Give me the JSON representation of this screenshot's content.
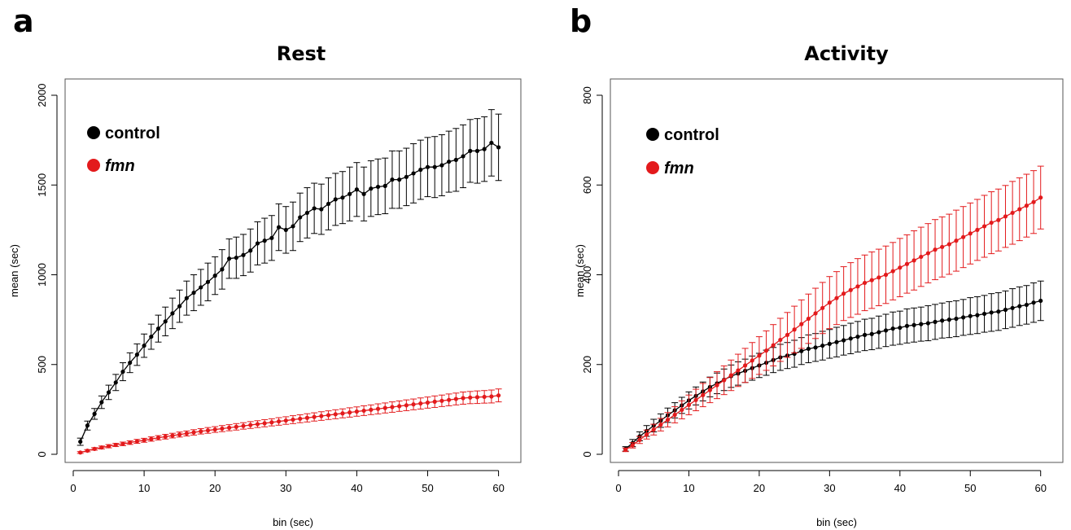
{
  "panels": {
    "a": {
      "letter": "a"
    },
    "b": {
      "letter": "b"
    }
  },
  "colors": {
    "control": "#000000",
    "fmn": "#e31a1c"
  },
  "chart_data": [
    {
      "type": "line",
      "title": "Rest",
      "xlabel": "bin (sec)",
      "ylabel": "mean (sec)",
      "xlim": [
        0,
        62
      ],
      "ylim": [
        0,
        2000
      ],
      "xticks": [
        0,
        10,
        20,
        30,
        40,
        50,
        60
      ],
      "yticks": [
        0,
        500,
        1000,
        1500,
        2000
      ],
      "legend": {
        "placement": "top-left",
        "entries": [
          "control",
          "fmn"
        ]
      },
      "grid": false,
      "series": [
        {
          "name": "control",
          "color": "#000000",
          "x": [
            1,
            2,
            3,
            4,
            5,
            6,
            7,
            8,
            9,
            10,
            11,
            12,
            13,
            14,
            15,
            16,
            17,
            18,
            19,
            20,
            21,
            22,
            23,
            24,
            25,
            26,
            27,
            28,
            29,
            30,
            31,
            32,
            33,
            34,
            35,
            36,
            37,
            38,
            39,
            40,
            41,
            42,
            43,
            44,
            45,
            46,
            47,
            48,
            49,
            50,
            51,
            52,
            53,
            54,
            55,
            56,
            57,
            58,
            59,
            60
          ],
          "values": [
            70,
            160,
            225,
            290,
            345,
            400,
            460,
            510,
            555,
            605,
            655,
            700,
            740,
            785,
            825,
            870,
            900,
            930,
            960,
            995,
            1030,
            1090,
            1095,
            1110,
            1135,
            1175,
            1190,
            1205,
            1265,
            1250,
            1270,
            1320,
            1345,
            1370,
            1365,
            1395,
            1420,
            1430,
            1450,
            1475,
            1450,
            1480,
            1490,
            1495,
            1530,
            1530,
            1545,
            1565,
            1585,
            1600,
            1600,
            1610,
            1630,
            1640,
            1660,
            1690,
            1690,
            1700,
            1735,
            1710
          ],
          "errors": [
            20,
            25,
            30,
            35,
            40,
            45,
            50,
            55,
            60,
            65,
            70,
            75,
            80,
            85,
            90,
            95,
            100,
            100,
            105,
            105,
            110,
            110,
            115,
            115,
            120,
            120,
            125,
            125,
            130,
            130,
            135,
            135,
            140,
            140,
            140,
            145,
            145,
            145,
            150,
            150,
            150,
            155,
            155,
            155,
            160,
            160,
            160,
            165,
            165,
            165,
            170,
            170,
            170,
            175,
            175,
            175,
            180,
            180,
            185,
            185
          ]
        },
        {
          "name": "fmn",
          "color": "#e31a1c",
          "x": [
            1,
            2,
            3,
            4,
            5,
            6,
            7,
            8,
            9,
            10,
            11,
            12,
            13,
            14,
            15,
            16,
            17,
            18,
            19,
            20,
            21,
            22,
            23,
            24,
            25,
            26,
            27,
            28,
            29,
            30,
            31,
            32,
            33,
            34,
            35,
            36,
            37,
            38,
            39,
            40,
            41,
            42,
            43,
            44,
            45,
            46,
            47,
            48,
            49,
            50,
            51,
            52,
            53,
            54,
            55,
            56,
            57,
            58,
            59,
            60
          ],
          "values": [
            10,
            20,
            30,
            38,
            45,
            52,
            58,
            65,
            72,
            78,
            85,
            92,
            98,
            104,
            110,
            116,
            122,
            128,
            133,
            138,
            143,
            148,
            153,
            158,
            163,
            168,
            173,
            178,
            183,
            188,
            193,
            198,
            203,
            208,
            213,
            218,
            223,
            228,
            233,
            238,
            243,
            248,
            253,
            258,
            263,
            268,
            273,
            278,
            283,
            288,
            293,
            298,
            303,
            308,
            313,
            316,
            318,
            320,
            322,
            328
          ],
          "errors": [
            5,
            6,
            7,
            8,
            9,
            9,
            10,
            10,
            11,
            11,
            12,
            12,
            13,
            13,
            14,
            14,
            15,
            15,
            16,
            16,
            17,
            17,
            18,
            18,
            19,
            19,
            20,
            20,
            21,
            21,
            22,
            22,
            23,
            23,
            24,
            24,
            25,
            25,
            26,
            26,
            27,
            27,
            28,
            28,
            29,
            29,
            30,
            30,
            31,
            31,
            32,
            32,
            33,
            33,
            34,
            34,
            35,
            35,
            36,
            36
          ]
        }
      ]
    },
    {
      "type": "line",
      "title": "Activity",
      "xlabel": "bin (sec)",
      "ylabel": "mean (sec)",
      "xlim": [
        0,
        62
      ],
      "ylim": [
        0,
        800
      ],
      "xticks": [
        0,
        10,
        20,
        30,
        40,
        50,
        60
      ],
      "yticks": [
        0,
        200,
        400,
        600,
        800
      ],
      "legend": {
        "placement": "top-left",
        "entries": [
          "control",
          "fmn"
        ]
      },
      "grid": false,
      "series": [
        {
          "name": "control",
          "color": "#000000",
          "x": [
            1,
            2,
            3,
            4,
            5,
            6,
            7,
            8,
            9,
            10,
            11,
            12,
            13,
            14,
            15,
            16,
            17,
            18,
            19,
            20,
            21,
            22,
            23,
            24,
            25,
            26,
            27,
            28,
            29,
            30,
            31,
            32,
            33,
            34,
            35,
            36,
            37,
            38,
            39,
            40,
            41,
            42,
            43,
            44,
            45,
            46,
            47,
            48,
            49,
            50,
            51,
            52,
            53,
            54,
            55,
            56,
            57,
            58,
            59,
            60
          ],
          "values": [
            12,
            25,
            40,
            52,
            64,
            75,
            87,
            98,
            109,
            120,
            130,
            140,
            150,
            158,
            166,
            174,
            180,
            186,
            192,
            198,
            204,
            210,
            216,
            220,
            224,
            230,
            235,
            238,
            242,
            246,
            250,
            254,
            258,
            262,
            266,
            268,
            272,
            276,
            280,
            282,
            286,
            288,
            290,
            292,
            295,
            298,
            300,
            302,
            305,
            308,
            310,
            313,
            316,
            318,
            322,
            326,
            330,
            333,
            338,
            342
          ],
          "errors": [
            5,
            8,
            10,
            12,
            14,
            15,
            16,
            17,
            18,
            19,
            20,
            21,
            22,
            23,
            24,
            25,
            26,
            26,
            27,
            27,
            28,
            28,
            29,
            29,
            30,
            30,
            31,
            31,
            32,
            32,
            33,
            33,
            34,
            34,
            35,
            35,
            36,
            36,
            37,
            37,
            38,
            38,
            38,
            39,
            39,
            39,
            40,
            40,
            40,
            41,
            41,
            41,
            42,
            42,
            42,
            43,
            43,
            43,
            44,
            44
          ]
        },
        {
          "name": "fmn",
          "color": "#e31a1c",
          "x": [
            1,
            2,
            3,
            4,
            5,
            6,
            7,
            8,
            9,
            10,
            11,
            12,
            13,
            14,
            15,
            16,
            17,
            18,
            19,
            20,
            21,
            22,
            23,
            24,
            25,
            26,
            27,
            28,
            29,
            30,
            31,
            32,
            33,
            34,
            35,
            36,
            37,
            38,
            39,
            40,
            41,
            42,
            43,
            44,
            45,
            46,
            47,
            48,
            49,
            50,
            51,
            52,
            53,
            54,
            55,
            56,
            57,
            58,
            59,
            60
          ],
          "values": [
            10,
            20,
            32,
            44,
            55,
            66,
            77,
            88,
            99,
            110,
            121,
            132,
            143,
            154,
            165,
            176,
            187,
            198,
            209,
            220,
            231,
            243,
            255,
            266,
            278,
            290,
            302,
            314,
            326,
            338,
            348,
            358,
            366,
            374,
            382,
            388,
            394,
            400,
            408,
            416,
            424,
            432,
            440,
            448,
            456,
            462,
            468,
            476,
            484,
            492,
            500,
            508,
            516,
            522,
            530,
            538,
            546,
            554,
            562,
            572
          ],
          "errors": [
            4,
            6,
            8,
            10,
            12,
            14,
            16,
            18,
            20,
            22,
            24,
            26,
            28,
            30,
            32,
            34,
            36,
            38,
            40,
            42,
            44,
            46,
            48,
            50,
            52,
            54,
            55,
            56,
            57,
            58,
            59,
            60,
            61,
            62,
            62,
            63,
            63,
            64,
            64,
            65,
            65,
            66,
            66,
            66,
            67,
            67,
            67,
            68,
            68,
            68,
            68,
            69,
            69,
            69,
            69,
            70,
            70,
            70,
            70,
            70
          ]
        }
      ]
    }
  ]
}
